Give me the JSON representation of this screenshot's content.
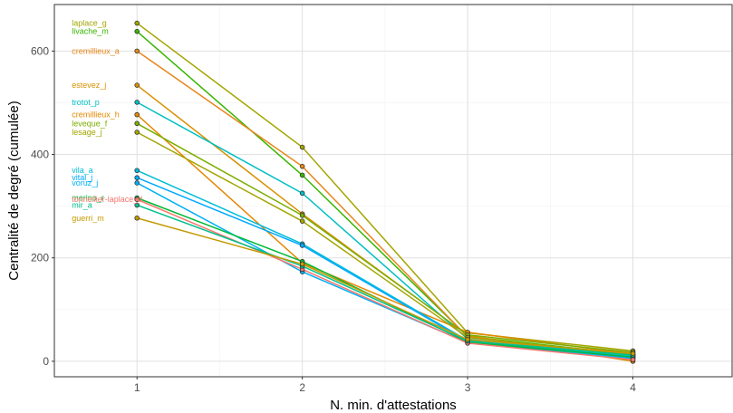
{
  "chart_data": {
    "type": "line",
    "title": "",
    "xlabel": "N. min. d'attestations",
    "ylabel": "Centralité de degré (cumulée)",
    "x": [
      1,
      2,
      3,
      4
    ],
    "xlim": [
      0.5,
      4.6
    ],
    "ylim": [
      -30,
      690
    ],
    "x_ticks": [
      1,
      2,
      3,
      4
    ],
    "y_ticks": [
      0,
      200,
      400,
      600
    ],
    "grid": true,
    "legend": "none",
    "series": [
      {
        "name": "laplace_g",
        "color": "#a3a500",
        "values": [
          654,
          414,
          55,
          20
        ]
      },
      {
        "name": "livache_m",
        "color": "#39b600",
        "values": [
          638,
          360,
          48,
          13
        ]
      },
      {
        "name": "cremillieux_a",
        "color": "#e7861b",
        "values": [
          600,
          377,
          47,
          9
        ]
      },
      {
        "name": "estevez_j",
        "color": "#d89000",
        "values": [
          534,
          285,
          50,
          0
        ]
      },
      {
        "name": "trotot_p",
        "color": "#00bfc4",
        "values": [
          501,
          325,
          43,
          11
        ]
      },
      {
        "name": "cremillieux_h",
        "color": "#e58700",
        "values": [
          477,
          190,
          56,
          14
        ]
      },
      {
        "name": "leveque_f",
        "color": "#7cae00",
        "values": [
          460,
          282,
          51,
          17
        ]
      },
      {
        "name": "lesage_j",
        "color": "#a3a500",
        "values": [
          443,
          271,
          46,
          13
        ]
      },
      {
        "name": "vila_a",
        "color": "#00bcd8",
        "values": [
          369,
          227,
          40,
          9
        ]
      },
      {
        "name": "vital_j",
        "color": "#00a9ff",
        "values": [
          355,
          224,
          38,
          6
        ]
      },
      {
        "name": "voruz_j",
        "color": "#00b0f6",
        "values": [
          345,
          173,
          36,
          5
        ]
      },
      {
        "name": "merino_r",
        "color": "#00ba38",
        "values": [
          316,
          193,
          37,
          8
        ]
      },
      {
        "name": "tonnellier-laplace_d",
        "color": "#f8766d",
        "values": [
          313,
          178,
          35,
          3
        ]
      },
      {
        "name": "mir_a",
        "color": "#00c08b",
        "values": [
          302,
          184,
          39,
          12
        ]
      },
      {
        "name": "guerri_m",
        "color": "#c49a00",
        "values": [
          277,
          188,
          42,
          15
        ]
      }
    ]
  }
}
